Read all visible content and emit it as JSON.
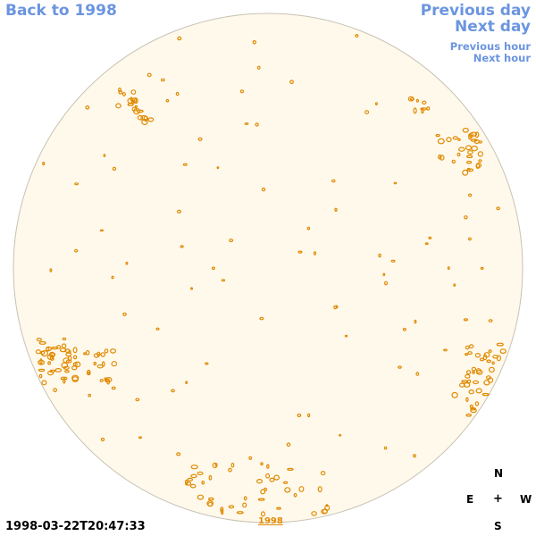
{
  "nav": {
    "back_label": "Back to 1998",
    "prev_day_label": "Previous day",
    "next_day_label": "Next day",
    "prev_hour_label": "Previous hour",
    "next_hour_label": "Next hour"
  },
  "timestamp": "1998-03-22T20:47:33",
  "year_label": "1998",
  "compass": {
    "north": "N",
    "east": "E",
    "center": "+",
    "west": "W",
    "south": "S"
  },
  "colors": {
    "link": "#6b95e0",
    "disc_fill": "#fff9ec",
    "disc_border": "#c9c2b4",
    "contour": "#e08a00"
  }
}
